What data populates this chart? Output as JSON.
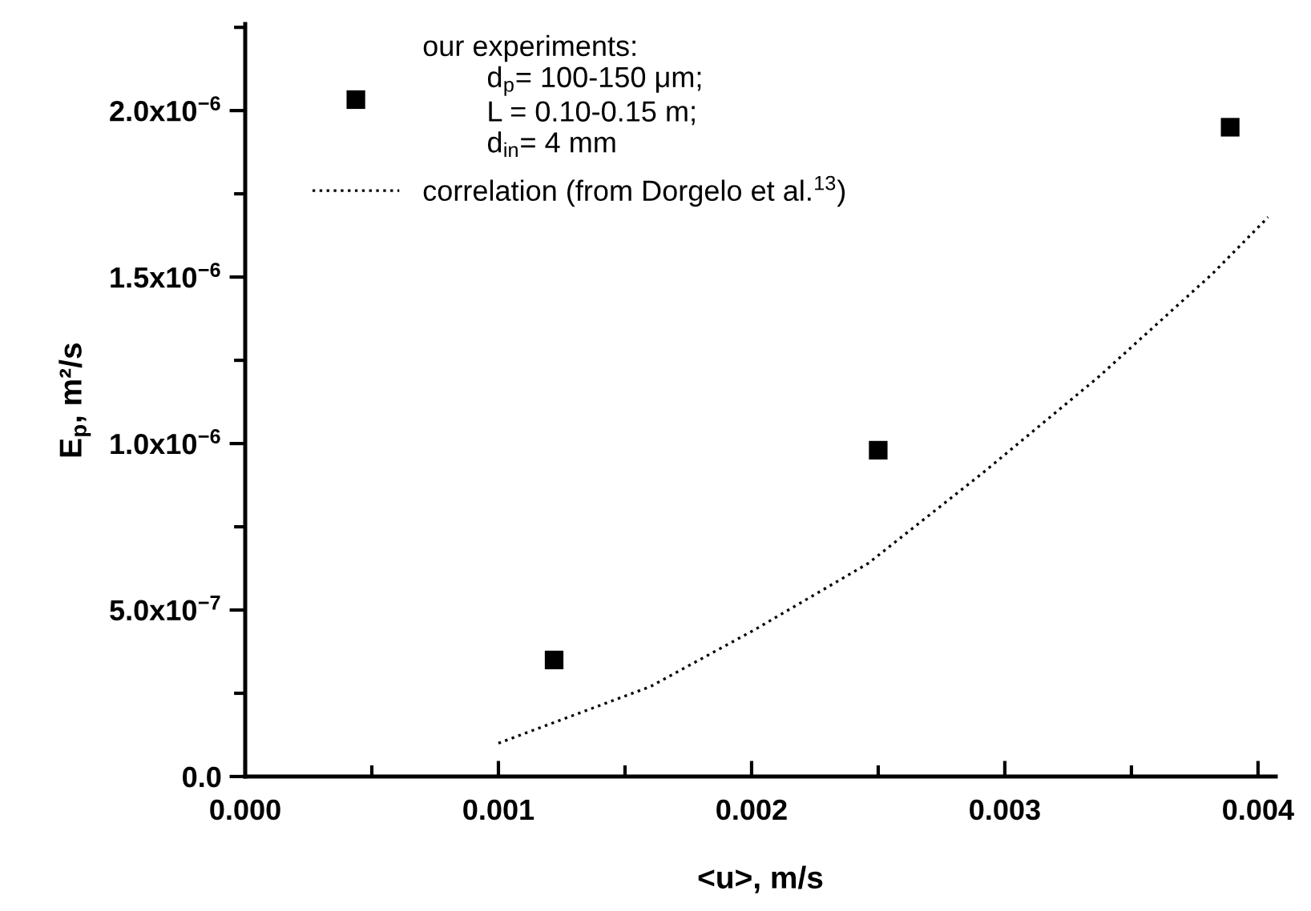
{
  "chart_data": {
    "type": "scatter",
    "xlabel": "<u>, m/s",
    "ylabel": "E$_{p}$, m²/s",
    "xlim": [
      0,
      0.00407
    ],
    "xticks": [
      {
        "value": 0,
        "label": "0.000"
      },
      {
        "value": 0.001,
        "label": "0.001"
      },
      {
        "value": 0.002,
        "label": "0.002"
      },
      {
        "value": 0.003,
        "label": "0.003"
      },
      {
        "value": 0.004,
        "label": "0.004"
      }
    ],
    "ylim": [
      0,
      2.26e-06
    ],
    "yticks": [
      {
        "value": 0,
        "label": "0.0"
      },
      {
        "value": 5e-07,
        "label": "5.0x10$^{−7}$"
      },
      {
        "value": 1e-06,
        "label": "1.0x10$^{−6}$"
      },
      {
        "value": 1.5e-06,
        "label": "1.5x10$^{−6}$"
      },
      {
        "value": 2e-06,
        "label": "2.0x10$^{−6}$"
      }
    ],
    "grid": false,
    "legend": "top left",
    "series": [
      {
        "name": "our experiments:\n        d$_{p}$= 100-150 μm;\n        L = 0.10-0.15 m;\n        d$_{in}$= 4 mm",
        "marker": "square",
        "color": "#000000",
        "x": [
          0.00122,
          0.0025,
          0.00389
        ],
        "values": [
          3.5e-07,
          9.8e-07,
          1.95e-06
        ]
      },
      {
        "name": "correlation (from Dorgelo et al.$^{13}$)",
        "type": "line",
        "line_style": "dotted",
        "marker": "none",
        "color": "#000000",
        "x": [
          0.001,
          0.0016,
          0.00201,
          0.00246,
          0.00291,
          0.00337,
          0.00382,
          0.00404
        ],
        "values": [
          1e-07,
          2.7e-07,
          4.4e-07,
          6.4e-07,
          9.1e-07,
          1.2e-06,
          1.51e-06,
          1.68e-06
        ]
      }
    ]
  }
}
